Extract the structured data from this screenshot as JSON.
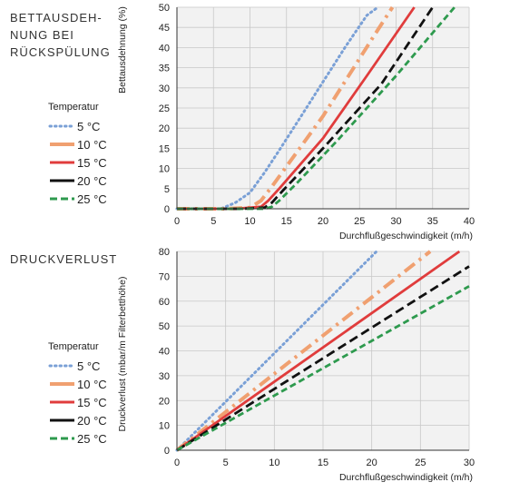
{
  "chart_data": [
    {
      "type": "line",
      "title": "BETTAUSDEH-\nNUNG BEI\nRÜCKSPÜLUNG",
      "xlabel": "Durchflußgeschwindigkeit (m/h)",
      "ylabel": "Bettausdehnung (%)",
      "xlim": [
        0,
        40
      ],
      "ylim": [
        0,
        50
      ],
      "xticks": [
        0,
        5,
        10,
        15,
        20,
        25,
        30,
        35,
        40
      ],
      "yticks": [
        0,
        5,
        10,
        15,
        20,
        25,
        30,
        35,
        40,
        45,
        50
      ],
      "grid": true,
      "legend_title": "Temperatur",
      "series": [
        {
          "name": "5 °C",
          "x": [
            0,
            6,
            8,
            10,
            12,
            14,
            17,
            20,
            23,
            26,
            27.5
          ],
          "y": [
            0,
            0,
            1.5,
            4,
            9,
            14.5,
            23,
            31.5,
            40,
            48,
            50
          ]
        },
        {
          "name": "10 °C",
          "x": [
            0,
            6.5,
            10,
            11.5,
            13,
            20,
            27,
            29.5
          ],
          "y": [
            0,
            0,
            0.3,
            2,
            5.5,
            23,
            43,
            50
          ]
        },
        {
          "name": "15 °C",
          "x": [
            0,
            8,
            11.5,
            12.5,
            14,
            20,
            26,
            32.5
          ],
          "y": [
            0,
            0,
            0.5,
            2,
            5,
            17.5,
            33,
            50
          ]
        },
        {
          "name": "20 °C",
          "x": [
            0,
            9,
            12,
            13,
            14.5,
            20,
            28,
            35
          ],
          "y": [
            0,
            0,
            0.3,
            1.5,
            4.5,
            15,
            31,
            50
          ]
        },
        {
          "name": "25 °C",
          "x": [
            0,
            9,
            12,
            13,
            14,
            16.5,
            22,
            30,
            38
          ],
          "y": [
            0,
            0,
            0,
            0.5,
            2,
            6.5,
            17,
            33,
            50
          ]
        }
      ]
    },
    {
      "type": "line",
      "title": "DRUCKVERLUST",
      "xlabel": "Durchflußgeschwindigkeit (m/h)",
      "ylabel": "Druckverlust (mbar/m Filterbetthöhe)",
      "xlim": [
        0,
        30
      ],
      "ylim": [
        0,
        80
      ],
      "xticks": [
        0,
        5,
        10,
        15,
        20,
        25,
        30
      ],
      "yticks": [
        0,
        10,
        20,
        30,
        40,
        50,
        60,
        70,
        80
      ],
      "grid": true,
      "legend_title": "Temperatur",
      "series": [
        {
          "name": "5 °C",
          "x": [
            0,
            20.5
          ],
          "y": [
            0,
            80
          ]
        },
        {
          "name": "10 °C",
          "x": [
            0,
            26
          ],
          "y": [
            0,
            80
          ]
        },
        {
          "name": "15 °C",
          "x": [
            0,
            29
          ],
          "y": [
            0,
            80
          ]
        },
        {
          "name": "20 °C",
          "x": [
            0,
            30
          ],
          "y": [
            0,
            74
          ]
        },
        {
          "name": "25 °C",
          "x": [
            0,
            30
          ],
          "y": [
            0,
            66
          ]
        }
      ]
    }
  ],
  "styles": [
    {
      "color": "#7aa0d6",
      "dash": "1.5 4",
      "width": 3,
      "cap": "round"
    },
    {
      "color": "#f0a070",
      "dash": "14 6 3 6",
      "width": 4,
      "cap": "butt"
    },
    {
      "color": "#e03c3c",
      "dash": "",
      "width": 2.8,
      "cap": "butt"
    },
    {
      "color": "#111111",
      "dash": "10 5",
      "width": 2.8,
      "cap": "butt"
    },
    {
      "color": "#2e9a4e",
      "dash": "7 4",
      "width": 2.8,
      "cap": "butt"
    }
  ],
  "legend_styles": [
    {
      "color": "#7aa0d6",
      "dash": "1.5 4",
      "width": 3,
      "cap": "round"
    },
    {
      "color": "#f0a070",
      "dash": "",
      "width": 4,
      "cap": "butt"
    },
    {
      "color": "#e03c3c",
      "dash": "",
      "width": 3,
      "cap": "butt"
    },
    {
      "color": "#111111",
      "dash": "",
      "width": 3,
      "cap": "butt"
    },
    {
      "color": "#2e9a4e",
      "dash": "8 4",
      "width": 3,
      "cap": "butt"
    }
  ]
}
